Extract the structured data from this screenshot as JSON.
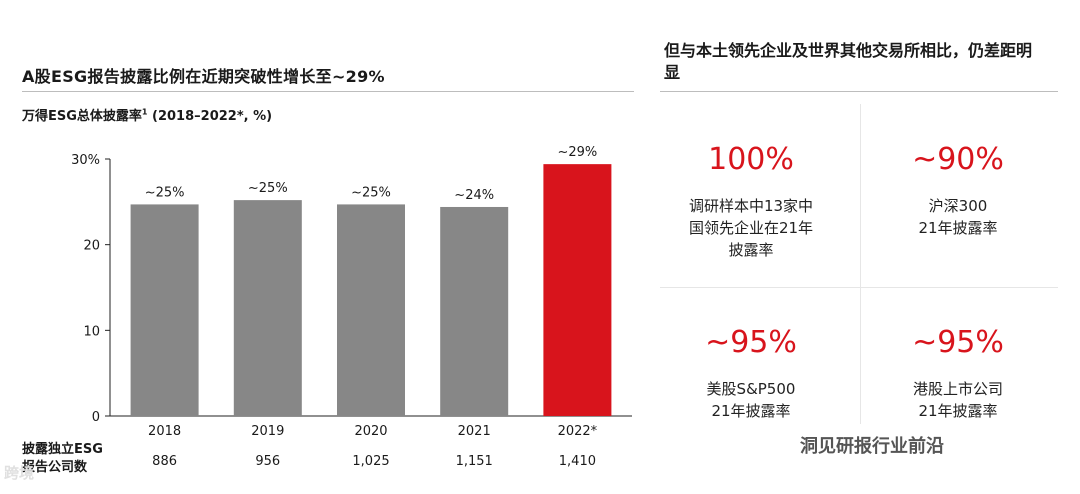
{
  "left": {
    "title": "A股ESG报告披露比例在近期突破性增长至~29%",
    "chart_subtitle_main": "万得ESG总体披露率",
    "chart_subtitle_sup": "1",
    "chart_subtitle_tail": " (2018–2022*, %)",
    "table_label": "披露独立ESG\n报告公司数"
  },
  "chart_data": {
    "type": "bar",
    "categories": [
      "2018",
      "2019",
      "2020",
      "2021",
      "2022*"
    ],
    "values": [
      24.7,
      25.2,
      24.7,
      24.4,
      29.4
    ],
    "data_labels": [
      "~25%",
      "~25%",
      "~25%",
      "~24%",
      "~29%"
    ],
    "colors": [
      "#878787",
      "#878787",
      "#878787",
      "#878787",
      "#d8141c"
    ],
    "y_ticks": [
      "0",
      "10",
      "20",
      "30%"
    ],
    "ylim": [
      0,
      30
    ],
    "grid": false,
    "companies": [
      "886",
      "956",
      "1,025",
      "1,151",
      "1,410"
    ]
  },
  "right": {
    "title": "但与本土领先企业及世界其他交易所相比，仍差距明显",
    "stats": [
      {
        "value": "100%",
        "desc": "调研样本中13家中\n国领先企业在21年\n披露率"
      },
      {
        "value": "~90%",
        "desc": "沪深300\n21年披露率"
      },
      {
        "value": "~95%",
        "desc": "美股S&P500\n21年披露率"
      },
      {
        "value": "~95%",
        "desc": "港股上市公司\n21年披露率"
      }
    ]
  },
  "watermarks": {
    "right": "洞见研报行业前沿",
    "left": "跨境"
  }
}
